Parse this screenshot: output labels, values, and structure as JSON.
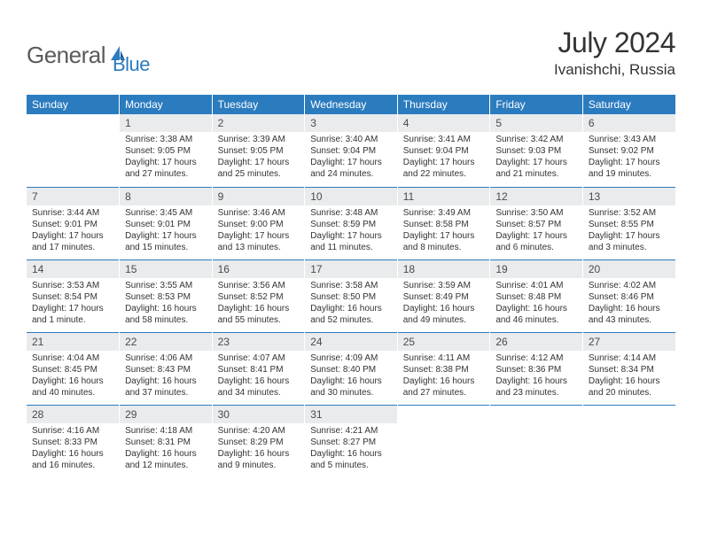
{
  "brand": {
    "part1": "General",
    "part2": "Blue",
    "icon_color": "#2b7bbf",
    "text1_color": "#5a5a5a"
  },
  "header": {
    "month_title": "July 2024",
    "location": "Ivanishchi, Russia"
  },
  "colors": {
    "header_bg": "#2b7bbf",
    "header_text": "#ffffff",
    "dayhead_bg": "#e9ebed",
    "dayhead_text": "#4a4a4a",
    "body_text": "#333333",
    "row_border": "#2b7bbf"
  },
  "typography": {
    "title_fontsize": 32,
    "location_fontsize": 17,
    "weekday_fontsize": 12,
    "daynum_fontsize": 12,
    "body_fontsize": 10
  },
  "calendar": {
    "weekdays": [
      "Sunday",
      "Monday",
      "Tuesday",
      "Wednesday",
      "Thursday",
      "Friday",
      "Saturday"
    ],
    "weeks": [
      [
        {
          "day": "",
          "sunrise": "",
          "sunset": "",
          "daylight": ""
        },
        {
          "day": "1",
          "sunrise": "Sunrise: 3:38 AM",
          "sunset": "Sunset: 9:05 PM",
          "daylight": "Daylight: 17 hours and 27 minutes."
        },
        {
          "day": "2",
          "sunrise": "Sunrise: 3:39 AM",
          "sunset": "Sunset: 9:05 PM",
          "daylight": "Daylight: 17 hours and 25 minutes."
        },
        {
          "day": "3",
          "sunrise": "Sunrise: 3:40 AM",
          "sunset": "Sunset: 9:04 PM",
          "daylight": "Daylight: 17 hours and 24 minutes."
        },
        {
          "day": "4",
          "sunrise": "Sunrise: 3:41 AM",
          "sunset": "Sunset: 9:04 PM",
          "daylight": "Daylight: 17 hours and 22 minutes."
        },
        {
          "day": "5",
          "sunrise": "Sunrise: 3:42 AM",
          "sunset": "Sunset: 9:03 PM",
          "daylight": "Daylight: 17 hours and 21 minutes."
        },
        {
          "day": "6",
          "sunrise": "Sunrise: 3:43 AM",
          "sunset": "Sunset: 9:02 PM",
          "daylight": "Daylight: 17 hours and 19 minutes."
        }
      ],
      [
        {
          "day": "7",
          "sunrise": "Sunrise: 3:44 AM",
          "sunset": "Sunset: 9:01 PM",
          "daylight": "Daylight: 17 hours and 17 minutes."
        },
        {
          "day": "8",
          "sunrise": "Sunrise: 3:45 AM",
          "sunset": "Sunset: 9:01 PM",
          "daylight": "Daylight: 17 hours and 15 minutes."
        },
        {
          "day": "9",
          "sunrise": "Sunrise: 3:46 AM",
          "sunset": "Sunset: 9:00 PM",
          "daylight": "Daylight: 17 hours and 13 minutes."
        },
        {
          "day": "10",
          "sunrise": "Sunrise: 3:48 AM",
          "sunset": "Sunset: 8:59 PM",
          "daylight": "Daylight: 17 hours and 11 minutes."
        },
        {
          "day": "11",
          "sunrise": "Sunrise: 3:49 AM",
          "sunset": "Sunset: 8:58 PM",
          "daylight": "Daylight: 17 hours and 8 minutes."
        },
        {
          "day": "12",
          "sunrise": "Sunrise: 3:50 AM",
          "sunset": "Sunset: 8:57 PM",
          "daylight": "Daylight: 17 hours and 6 minutes."
        },
        {
          "day": "13",
          "sunrise": "Sunrise: 3:52 AM",
          "sunset": "Sunset: 8:55 PM",
          "daylight": "Daylight: 17 hours and 3 minutes."
        }
      ],
      [
        {
          "day": "14",
          "sunrise": "Sunrise: 3:53 AM",
          "sunset": "Sunset: 8:54 PM",
          "daylight": "Daylight: 17 hours and 1 minute."
        },
        {
          "day": "15",
          "sunrise": "Sunrise: 3:55 AM",
          "sunset": "Sunset: 8:53 PM",
          "daylight": "Daylight: 16 hours and 58 minutes."
        },
        {
          "day": "16",
          "sunrise": "Sunrise: 3:56 AM",
          "sunset": "Sunset: 8:52 PM",
          "daylight": "Daylight: 16 hours and 55 minutes."
        },
        {
          "day": "17",
          "sunrise": "Sunrise: 3:58 AM",
          "sunset": "Sunset: 8:50 PM",
          "daylight": "Daylight: 16 hours and 52 minutes."
        },
        {
          "day": "18",
          "sunrise": "Sunrise: 3:59 AM",
          "sunset": "Sunset: 8:49 PM",
          "daylight": "Daylight: 16 hours and 49 minutes."
        },
        {
          "day": "19",
          "sunrise": "Sunrise: 4:01 AM",
          "sunset": "Sunset: 8:48 PM",
          "daylight": "Daylight: 16 hours and 46 minutes."
        },
        {
          "day": "20",
          "sunrise": "Sunrise: 4:02 AM",
          "sunset": "Sunset: 8:46 PM",
          "daylight": "Daylight: 16 hours and 43 minutes."
        }
      ],
      [
        {
          "day": "21",
          "sunrise": "Sunrise: 4:04 AM",
          "sunset": "Sunset: 8:45 PM",
          "daylight": "Daylight: 16 hours and 40 minutes."
        },
        {
          "day": "22",
          "sunrise": "Sunrise: 4:06 AM",
          "sunset": "Sunset: 8:43 PM",
          "daylight": "Daylight: 16 hours and 37 minutes."
        },
        {
          "day": "23",
          "sunrise": "Sunrise: 4:07 AM",
          "sunset": "Sunset: 8:41 PM",
          "daylight": "Daylight: 16 hours and 34 minutes."
        },
        {
          "day": "24",
          "sunrise": "Sunrise: 4:09 AM",
          "sunset": "Sunset: 8:40 PM",
          "daylight": "Daylight: 16 hours and 30 minutes."
        },
        {
          "day": "25",
          "sunrise": "Sunrise: 4:11 AM",
          "sunset": "Sunset: 8:38 PM",
          "daylight": "Daylight: 16 hours and 27 minutes."
        },
        {
          "day": "26",
          "sunrise": "Sunrise: 4:12 AM",
          "sunset": "Sunset: 8:36 PM",
          "daylight": "Daylight: 16 hours and 23 minutes."
        },
        {
          "day": "27",
          "sunrise": "Sunrise: 4:14 AM",
          "sunset": "Sunset: 8:34 PM",
          "daylight": "Daylight: 16 hours and 20 minutes."
        }
      ],
      [
        {
          "day": "28",
          "sunrise": "Sunrise: 4:16 AM",
          "sunset": "Sunset: 8:33 PM",
          "daylight": "Daylight: 16 hours and 16 minutes."
        },
        {
          "day": "29",
          "sunrise": "Sunrise: 4:18 AM",
          "sunset": "Sunset: 8:31 PM",
          "daylight": "Daylight: 16 hours and 12 minutes."
        },
        {
          "day": "30",
          "sunrise": "Sunrise: 4:20 AM",
          "sunset": "Sunset: 8:29 PM",
          "daylight": "Daylight: 16 hours and 9 minutes."
        },
        {
          "day": "31",
          "sunrise": "Sunrise: 4:21 AM",
          "sunset": "Sunset: 8:27 PM",
          "daylight": "Daylight: 16 hours and 5 minutes."
        },
        {
          "day": "",
          "sunrise": "",
          "sunset": "",
          "daylight": ""
        },
        {
          "day": "",
          "sunrise": "",
          "sunset": "",
          "daylight": ""
        },
        {
          "day": "",
          "sunrise": "",
          "sunset": "",
          "daylight": ""
        }
      ]
    ]
  }
}
